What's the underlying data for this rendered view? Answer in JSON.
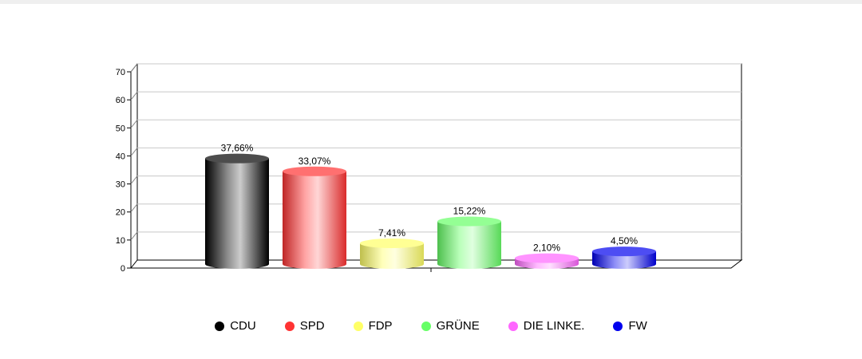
{
  "chart_data": {
    "type": "bar",
    "categories": [
      "CDU",
      "SPD",
      "FDP",
      "GRÜNE",
      "DIE LINKE.",
      "FW"
    ],
    "values": [
      37.66,
      33.07,
      7.41,
      15.22,
      2.1,
      4.5
    ],
    "data_labels": [
      "37,66%",
      "33,07%",
      "7,41%",
      "15,22%",
      "2,10%",
      "4,50%"
    ],
    "colors": [
      "#000000",
      "#ff3333",
      "#ffff66",
      "#66ff66",
      "#ff66ff",
      "#0000ee"
    ],
    "yticks": [
      0,
      10,
      20,
      30,
      40,
      50,
      60,
      70
    ],
    "ylim": [
      0,
      70
    ],
    "grid": true,
    "legend_position": "bottom",
    "title": "",
    "xlabel": "",
    "ylabel": ""
  }
}
